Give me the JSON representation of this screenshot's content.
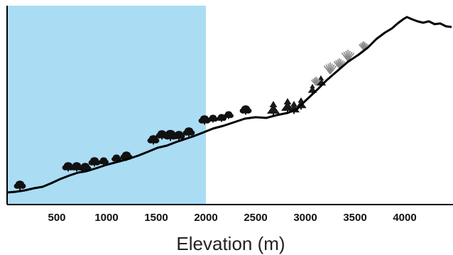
{
  "diagram": {
    "axis_title": "Elevation (m)",
    "ticks": [
      {
        "value": 500,
        "label": "500"
      },
      {
        "value": 1000,
        "label": "1000"
      },
      {
        "value": 1500,
        "label": "1500"
      },
      {
        "value": 2000,
        "label": "2000"
      },
      {
        "value": 2500,
        "label": "2500"
      },
      {
        "value": 3000,
        "label": "3000"
      },
      {
        "value": 3500,
        "label": "3500"
      },
      {
        "value": 4000,
        "label": "4000"
      }
    ],
    "highlight_range": [
      0,
      2000
    ],
    "x_range": [
      0,
      4450
    ],
    "colors": {
      "highlight": "#aadcf4",
      "terrain": "#000000",
      "deciduous_tree": "#111111",
      "conifer_tree": "#1a1a1a",
      "alpine_shrub": "#8a8a8a"
    },
    "vegetation_zones": [
      {
        "kind": "deciduous",
        "from": 0,
        "to": 2400
      },
      {
        "kind": "conifer",
        "from": 2600,
        "to": 3200
      },
      {
        "kind": "alpine",
        "from": 3200,
        "to": 3650
      }
    ]
  }
}
